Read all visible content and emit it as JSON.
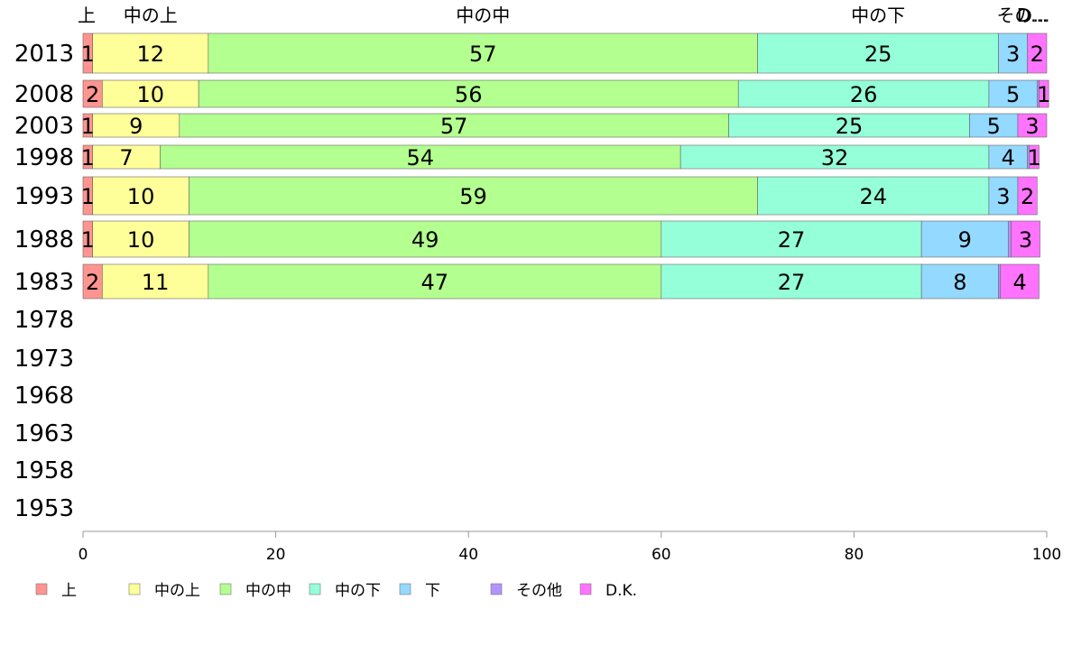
{
  "chart_data": {
    "type": "bar",
    "orientation": "horizontal",
    "stacked": true,
    "title": "",
    "xlabel": "",
    "ylabel": "",
    "xlim": [
      0,
      100
    ],
    "x_ticks": [
      "0",
      "20",
      "40",
      "60",
      "80",
      "100"
    ],
    "grid": false,
    "legend_position": "bottom",
    "categories": [
      "2013",
      "2008",
      "2003",
      "1998",
      "1993",
      "1988",
      "1983",
      "1978",
      "1973",
      "1968",
      "1963",
      "1958",
      "1953"
    ],
    "top_labels": [
      "上",
      "中の上",
      "中の中",
      "中の下",
      "その...",
      "D..."
    ],
    "series": [
      {
        "name": "上",
        "color": "#ff9490",
        "values": [
          1,
          2,
          1,
          1,
          1,
          1,
          2,
          null,
          null,
          null,
          null,
          null,
          null
        ],
        "labels": [
          "1",
          "2",
          "1",
          "1",
          "1",
          "1",
          "2",
          "",
          "",
          "",
          "",
          "",
          ""
        ]
      },
      {
        "name": "中の上",
        "color": "#ffff99",
        "values": [
          12,
          10,
          9,
          7,
          10,
          10,
          11,
          null,
          null,
          null,
          null,
          null,
          null
        ],
        "labels": [
          "12",
          "10",
          "9",
          "7",
          "10",
          "10",
          "11",
          "",
          "",
          "",
          "",
          "",
          ""
        ]
      },
      {
        "name": "中の中",
        "color": "#b3ff8f",
        "values": [
          57,
          56,
          57,
          54,
          59,
          49,
          47,
          null,
          null,
          null,
          null,
          null,
          null
        ],
        "labels": [
          "57",
          "56",
          "57",
          "54",
          "59",
          "49",
          "47",
          "",
          "",
          "",
          "",
          "",
          ""
        ]
      },
      {
        "name": "中の下",
        "color": "#94ffd9",
        "values": [
          25,
          26,
          25,
          32,
          24,
          27,
          27,
          null,
          null,
          null,
          null,
          null,
          null
        ],
        "labels": [
          "25",
          "26",
          "25",
          "32",
          "24",
          "27",
          "27",
          "",
          "",
          "",
          "",
          "",
          ""
        ]
      },
      {
        "name": "下",
        "color": "#94d9ff",
        "values": [
          3,
          5,
          5,
          4,
          3,
          9,
          8,
          null,
          null,
          null,
          null,
          null,
          null
        ],
        "labels": [
          "3",
          "5",
          "5",
          "4",
          "3",
          "9",
          "8",
          "",
          "",
          "",
          "",
          "",
          ""
        ]
      },
      {
        "name": "その他",
        "color": "#b394ff",
        "values": [
          0,
          0.2,
          0,
          0.2,
          0,
          0.3,
          0.2,
          null,
          null,
          null,
          null,
          null,
          null
        ],
        "labels": [
          "",
          "",
          "",
          "",
          "",
          "",
          "",
          "",
          "",
          "",
          "",
          "",
          ""
        ]
      },
      {
        "name": "D.K.",
        "color": "#ff73ff",
        "values": [
          2,
          1,
          3,
          1,
          2,
          3,
          4,
          null,
          null,
          null,
          null,
          null,
          null
        ],
        "labels": [
          "2",
          "1",
          "3",
          "1",
          "2",
          "3",
          "4",
          "",
          "",
          "",
          "",
          "",
          ""
        ]
      }
    ]
  }
}
